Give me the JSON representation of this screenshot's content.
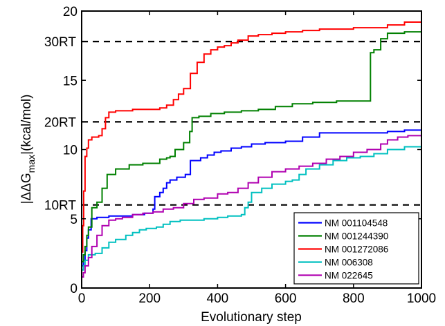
{
  "chart_data": {
    "type": "line",
    "title": "",
    "xlabel": "Evolutionary step",
    "ylabel": {
      "pre": "|ΔΔG",
      "sub": "max",
      "post": "|(kcal/mol)"
    },
    "xlim": [
      0,
      1000
    ],
    "ylim": [
      0,
      20
    ],
    "xticks": [
      0,
      200,
      400,
      600,
      800,
      1000
    ],
    "yticks": [
      0,
      5,
      10,
      15,
      20
    ],
    "grid": false,
    "legend_position": "bottom-right",
    "reference_lines": [
      {
        "label": "30RT",
        "y": 17.8
      },
      {
        "label": "20RT",
        "y": 12.0
      },
      {
        "label": "10RT",
        "y": 6.0
      }
    ],
    "series": [
      {
        "name": "NM 001104548",
        "color": "#0000ff",
        "points": [
          [
            0,
            1.6
          ],
          [
            5,
            2.0
          ],
          [
            10,
            2.7
          ],
          [
            15,
            3.6
          ],
          [
            20,
            4.2
          ],
          [
            28,
            5.0
          ],
          [
            45,
            5.1
          ],
          [
            60,
            5.1
          ],
          [
            80,
            5.2
          ],
          [
            100,
            5.2
          ],
          [
            130,
            5.2
          ],
          [
            150,
            5.3
          ],
          [
            185,
            5.4
          ],
          [
            210,
            5.7
          ],
          [
            215,
            6.6
          ],
          [
            230,
            6.9
          ],
          [
            240,
            7.2
          ],
          [
            250,
            7.6
          ],
          [
            260,
            7.8
          ],
          [
            280,
            8.0
          ],
          [
            305,
            8.2
          ],
          [
            320,
            9.2
          ],
          [
            350,
            9.4
          ],
          [
            370,
            9.6
          ],
          [
            390,
            9.8
          ],
          [
            410,
            9.9
          ],
          [
            440,
            10.1
          ],
          [
            470,
            10.2
          ],
          [
            500,
            10.4
          ],
          [
            540,
            10.5
          ],
          [
            600,
            10.6
          ],
          [
            650,
            10.9
          ],
          [
            700,
            11.2
          ],
          [
            750,
            11.2
          ],
          [
            850,
            11.2
          ],
          [
            900,
            11.3
          ],
          [
            950,
            11.4
          ],
          [
            1000,
            11.6
          ]
        ]
      },
      {
        "name": "NM 001244390",
        "color": "#008000",
        "points": [
          [
            0,
            1.9
          ],
          [
            5,
            2.4
          ],
          [
            10,
            3.0
          ],
          [
            15,
            3.8
          ],
          [
            20,
            4.4
          ],
          [
            30,
            5.8
          ],
          [
            45,
            6.2
          ],
          [
            60,
            7.2
          ],
          [
            75,
            8.2
          ],
          [
            100,
            8.6
          ],
          [
            140,
            8.9
          ],
          [
            180,
            9.0
          ],
          [
            230,
            9.3
          ],
          [
            250,
            9.4
          ],
          [
            260,
            9.5
          ],
          [
            275,
            10.0
          ],
          [
            300,
            10.5
          ],
          [
            318,
            11.3
          ],
          [
            325,
            12.3
          ],
          [
            345,
            12.4
          ],
          [
            380,
            12.6
          ],
          [
            420,
            12.7
          ],
          [
            470,
            12.8
          ],
          [
            520,
            12.9
          ],
          [
            570,
            13.1
          ],
          [
            620,
            13.3
          ],
          [
            680,
            13.4
          ],
          [
            750,
            13.5
          ],
          [
            800,
            13.5
          ],
          [
            845,
            13.5
          ],
          [
            850,
            17.0
          ],
          [
            860,
            17.2
          ],
          [
            880,
            18.0
          ],
          [
            900,
            18.4
          ],
          [
            950,
            18.5
          ],
          [
            1000,
            18.6
          ]
        ]
      },
      {
        "name": "NM 001272086",
        "color": "#ff0000",
        "points": [
          [
            0,
            2.6
          ],
          [
            3,
            4.5
          ],
          [
            6,
            7.0
          ],
          [
            10,
            9.5
          ],
          [
            15,
            10.1
          ],
          [
            20,
            10.7
          ],
          [
            30,
            10.9
          ],
          [
            50,
            11.0
          ],
          [
            60,
            11.5
          ],
          [
            70,
            12.3
          ],
          [
            80,
            12.7
          ],
          [
            100,
            12.8
          ],
          [
            150,
            12.9
          ],
          [
            200,
            12.9
          ],
          [
            230,
            13.0
          ],
          [
            250,
            13.2
          ],
          [
            270,
            13.6
          ],
          [
            285,
            14.0
          ],
          [
            300,
            14.4
          ],
          [
            320,
            15.5
          ],
          [
            340,
            16.3
          ],
          [
            360,
            16.9
          ],
          [
            380,
            17.2
          ],
          [
            400,
            17.4
          ],
          [
            420,
            17.5
          ],
          [
            440,
            17.7
          ],
          [
            460,
            17.9
          ],
          [
            490,
            18.2
          ],
          [
            520,
            18.3
          ],
          [
            560,
            18.4
          ],
          [
            600,
            18.5
          ],
          [
            650,
            18.6
          ],
          [
            700,
            18.7
          ],
          [
            750,
            18.7
          ],
          [
            800,
            18.8
          ],
          [
            850,
            18.8
          ],
          [
            900,
            19.0
          ],
          [
            950,
            19.2
          ],
          [
            1000,
            19.2
          ]
        ]
      },
      {
        "name": "NM 006308",
        "color": "#00c0c0",
        "points": [
          [
            0,
            1.3
          ],
          [
            5,
            1.6
          ],
          [
            10,
            2.0
          ],
          [
            20,
            2.4
          ],
          [
            40,
            2.5
          ],
          [
            60,
            2.9
          ],
          [
            80,
            3.3
          ],
          [
            100,
            3.5
          ],
          [
            130,
            3.8
          ],
          [
            150,
            4.0
          ],
          [
            170,
            4.2
          ],
          [
            190,
            4.3
          ],
          [
            220,
            4.4
          ],
          [
            240,
            4.6
          ],
          [
            260,
            4.8
          ],
          [
            290,
            4.9
          ],
          [
            320,
            4.9
          ],
          [
            360,
            5.0
          ],
          [
            400,
            5.1
          ],
          [
            430,
            5.2
          ],
          [
            470,
            5.3
          ],
          [
            480,
            5.8
          ],
          [
            490,
            6.2
          ],
          [
            500,
            6.9
          ],
          [
            530,
            7.2
          ],
          [
            560,
            7.5
          ],
          [
            600,
            7.7
          ],
          [
            620,
            7.8
          ],
          [
            640,
            8.2
          ],
          [
            660,
            8.6
          ],
          [
            700,
            8.9
          ],
          [
            740,
            9.2
          ],
          [
            780,
            9.4
          ],
          [
            820,
            9.5
          ],
          [
            860,
            9.7
          ],
          [
            900,
            10.0
          ],
          [
            950,
            10.2
          ],
          [
            1000,
            10.5
          ]
        ]
      },
      {
        "name": "NM 022645",
        "color": "#b000b0",
        "points": [
          [
            0,
            0.8
          ],
          [
            5,
            1.1
          ],
          [
            10,
            1.6
          ],
          [
            20,
            2.2
          ],
          [
            30,
            3.0
          ],
          [
            45,
            3.8
          ],
          [
            60,
            4.5
          ],
          [
            80,
            4.9
          ],
          [
            100,
            5.0
          ],
          [
            120,
            5.1
          ],
          [
            150,
            5.3
          ],
          [
            180,
            5.4
          ],
          [
            210,
            5.5
          ],
          [
            240,
            5.7
          ],
          [
            270,
            5.8
          ],
          [
            300,
            6.1
          ],
          [
            330,
            6.4
          ],
          [
            360,
            6.5
          ],
          [
            400,
            6.8
          ],
          [
            430,
            6.9
          ],
          [
            460,
            7.2
          ],
          [
            490,
            7.6
          ],
          [
            520,
            8.0
          ],
          [
            560,
            8.4
          ],
          [
            600,
            8.6
          ],
          [
            640,
            8.8
          ],
          [
            680,
            9.0
          ],
          [
            720,
            9.3
          ],
          [
            760,
            9.5
          ],
          [
            800,
            9.8
          ],
          [
            840,
            10.0
          ],
          [
            880,
            10.4
          ],
          [
            900,
            10.7
          ],
          [
            930,
            10.9
          ],
          [
            960,
            11.0
          ],
          [
            1000,
            11.1
          ]
        ]
      }
    ]
  }
}
